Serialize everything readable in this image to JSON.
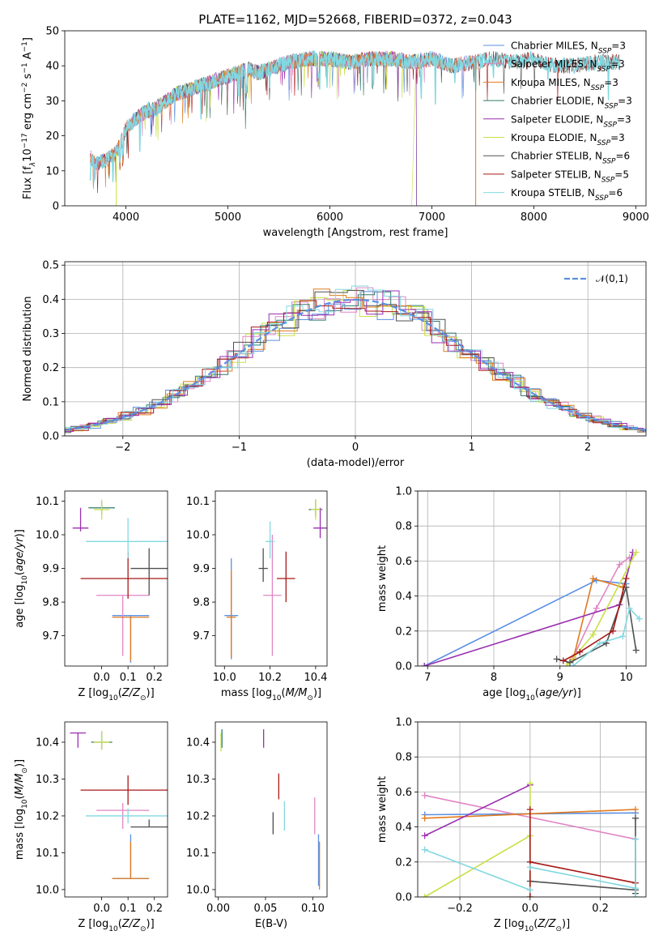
{
  "title": "PLATE=1162, MJD=52668, FIBERID=0372, z=0.043",
  "colors": {
    "chabrier_miles": "#5b8fe0",
    "salpeter_miles": "#e086c4",
    "kroupa_miles": "#e07a1f",
    "chabrier_elodie": "#2d7a6e",
    "salpeter_elodie": "#9a2fb0",
    "kroupa_elodie": "#c9e045",
    "chabrier_stelib": "#505050",
    "salpeter_stelib": "#a81818",
    "kroupa_stelib": "#82d8e0",
    "normal": "#5b8fe0"
  },
  "chart_data": [
    {
      "id": "spectrum",
      "type": "line",
      "xlabel": "wavelength [Angstrom, rest frame]",
      "ylabel": "Flux [f_λ10^{-17} erg cm^{-2} s^{-1} A^{-1}]",
      "xlim": [
        3400,
        9100
      ],
      "ylim": [
        0,
        50
      ],
      "xticks": [
        4000,
        5000,
        6000,
        7000,
        8000,
        9000
      ],
      "yticks": [
        0,
        10,
        20,
        30,
        40,
        50
      ],
      "legend_position": "upper-right",
      "series": [
        {
          "name": "Chabrier MILES, N_SSP=3",
          "key": "chabrier_miles"
        },
        {
          "name": "Salpeter MILES, N_SSP=3",
          "key": "salpeter_miles"
        },
        {
          "name": "Kroupa MILES, N_SSP=3",
          "key": "kroupa_miles"
        },
        {
          "name": "Chabrier ELODIE, N_SSP=3",
          "key": "chabrier_elodie"
        },
        {
          "name": "Salpeter ELODIE, N_SSP=3",
          "key": "salpeter_elodie"
        },
        {
          "name": "Kroupa ELODIE, N_SSP=3",
          "key": "kroupa_elodie"
        },
        {
          "name": "Chabrier STELIB, N_SSP=6",
          "key": "chabrier_stelib"
        },
        {
          "name": "Salpeter STELIB, N_SSP=5",
          "key": "salpeter_stelib"
        },
        {
          "name": "Kroupa STELIB, N_SSP=6",
          "key": "kroupa_stelib"
        }
      ],
      "spectrum_profile": {
        "x": [
          3650,
          3700,
          3800,
          3900,
          3950,
          4000,
          4100,
          4200,
          4300,
          4400,
          4500,
          4600,
          4700,
          4800,
          4900,
          5000,
          5100,
          5200,
          5300,
          5400,
          5500,
          5600,
          5800,
          6000,
          6200,
          6400,
          6600,
          6800,
          7000,
          7200,
          7400,
          7600,
          7800,
          8000,
          8200,
          8400,
          8600,
          8800
        ],
        "y": [
          14,
          12,
          13,
          15,
          18,
          22,
          25,
          27,
          28,
          30,
          32,
          33,
          34,
          35,
          36,
          37,
          38,
          39,
          38,
          39,
          40,
          41,
          42,
          42,
          41,
          42,
          42,
          41,
          42,
          40,
          41,
          42,
          41,
          42,
          40,
          40,
          41,
          41
        ]
      }
    },
    {
      "id": "residuals",
      "type": "area",
      "xlabel": "(data-model)/error",
      "ylabel": "Normed distribution",
      "xlim": [
        -2.5,
        2.5
      ],
      "ylim": [
        0,
        0.51
      ],
      "xticks": [
        -2,
        -1,
        0,
        1,
        2
      ],
      "yticks": [
        0.0,
        0.1,
        0.2,
        0.3,
        0.4,
        0.5
      ],
      "grid": true,
      "legend_position": "upper-right",
      "series": [
        {
          "name": "𝒩(0,1)",
          "key": "normal",
          "style": "dashed"
        }
      ]
    },
    {
      "id": "age_vs_Z",
      "type": "scatter",
      "xlabel": "Z [log10(Z/Z⊙)]",
      "ylabel": "age  [log10(age/yr)]",
      "xlim": [
        -0.14,
        0.25
      ],
      "ylim": [
        9.61,
        10.13
      ],
      "xticks": [
        0.0,
        0.1,
        0.2
      ],
      "yticks": [
        9.7,
        9.8,
        9.9,
        10.0,
        10.1
      ],
      "points": [
        {
          "key": "chabrier_miles",
          "x": 0.11,
          "y": 9.76,
          "xerr": 0.07,
          "yerr_lo": 0.14,
          "yerr_hi": 0.0
        },
        {
          "key": "salpeter_miles",
          "x": 0.08,
          "y": 9.82,
          "xerr": 0.1,
          "yerr_lo": 0.18,
          "yerr_hi": 0.0
        },
        {
          "key": "kroupa_miles",
          "x": 0.11,
          "y": 9.755,
          "xerr": 0.07,
          "yerr_lo": 0.13,
          "yerr_hi": 0.0
        },
        {
          "key": "chabrier_elodie",
          "x": 0.0,
          "y": 10.08,
          "xerr": 0.05,
          "yerr_lo": 0.02,
          "yerr_hi": 0.02
        },
        {
          "key": "salpeter_elodie",
          "x": -0.08,
          "y": 10.02,
          "xerr": 0.03,
          "yerr_lo": 0.01,
          "yerr_hi": 0.06
        },
        {
          "key": "kroupa_elodie",
          "x": 0.0,
          "y": 10.075,
          "xerr": 0.03,
          "yerr_lo": 0.03,
          "yerr_hi": 0.03
        },
        {
          "key": "chabrier_stelib",
          "x": 0.18,
          "y": 9.9,
          "xerr": 0.07,
          "yerr_lo": 0.08,
          "yerr_hi": 0.06
        },
        {
          "key": "salpeter_stelib",
          "x": 0.1,
          "y": 9.87,
          "xerr": 0.18,
          "yerr_lo": 0.06,
          "yerr_hi": 0.08
        },
        {
          "key": "kroupa_stelib",
          "x": 0.1,
          "y": 9.98,
          "xerr": 0.16,
          "yerr_lo": 0.05,
          "yerr_hi": 0.07
        }
      ]
    },
    {
      "id": "age_vs_mass",
      "type": "scatter",
      "xlabel": "mass [log10(M/M⊙)]",
      "ylabel": "",
      "xlim": [
        9.96,
        10.45
      ],
      "ylim": [
        9.61,
        10.13
      ],
      "xticks": [
        10.0,
        10.2,
        10.4
      ],
      "yticks": [
        9.7,
        9.8,
        9.9,
        10.0,
        10.1
      ],
      "points": [
        {
          "key": "chabrier_miles",
          "x": 10.03,
          "y": 9.76,
          "xerr": 0.03,
          "yerr_lo": 0.13,
          "yerr_hi": 0.17
        },
        {
          "key": "salpeter_miles",
          "x": 10.21,
          "y": 9.82,
          "xerr": 0.04,
          "yerr_lo": 0.18,
          "yerr_hi": 0.18
        },
        {
          "key": "kroupa_miles",
          "x": 10.03,
          "y": 9.755,
          "xerr": 0.02,
          "yerr_lo": 0.12,
          "yerr_hi": 0.14
        },
        {
          "key": "chabrier_elodie",
          "x": 10.4,
          "y": 10.075,
          "xerr": 0.03,
          "yerr_lo": 0.02,
          "yerr_hi": 0.03
        },
        {
          "key": "salpeter_elodie",
          "x": 10.42,
          "y": 10.02,
          "xerr": 0.03,
          "yerr_lo": 0.03,
          "yerr_hi": 0.06
        },
        {
          "key": "kroupa_elodie",
          "x": 10.4,
          "y": 10.075,
          "xerr": 0.02,
          "yerr_lo": 0.03,
          "yerr_hi": 0.03
        },
        {
          "key": "chabrier_stelib",
          "x": 10.17,
          "y": 9.9,
          "xerr": 0.02,
          "yerr_lo": 0.04,
          "yerr_hi": 0.06
        },
        {
          "key": "salpeter_stelib",
          "x": 10.27,
          "y": 9.87,
          "xerr": 0.04,
          "yerr_lo": 0.07,
          "yerr_hi": 0.08
        },
        {
          "key": "kroupa_stelib",
          "x": 10.2,
          "y": 9.98,
          "xerr": 0.02,
          "yerr_lo": 0.05,
          "yerr_hi": 0.06
        }
      ]
    },
    {
      "id": "massweight_vs_age",
      "type": "line",
      "xlabel": "age  [log10(age/yr)]",
      "ylabel": "mass weight",
      "xlim": [
        6.85,
        10.3
      ],
      "ylim": [
        0,
        1.0
      ],
      "xticks": [
        7,
        8,
        9,
        10
      ],
      "yticks": [
        0.0,
        0.2,
        0.4,
        0.6,
        0.8,
        1.0
      ],
      "grid": true,
      "series": [
        {
          "key": "chabrier_miles",
          "x": [
            6.95,
            9.55,
            10.0
          ],
          "y": [
            0.0,
            0.49,
            0.47
          ]
        },
        {
          "key": "salpeter_miles",
          "x": [
            9.2,
            9.55,
            9.9,
            10.05
          ],
          "y": [
            0.05,
            0.33,
            0.58,
            0.62
          ]
        },
        {
          "key": "kroupa_miles",
          "x": [
            9.2,
            9.5,
            9.95
          ],
          "y": [
            0.04,
            0.5,
            0.45
          ]
        },
        {
          "key": "salpeter_elodie",
          "x": [
            6.95,
            9.9,
            10.1
          ],
          "y": [
            0.0,
            0.35,
            0.65
          ]
        },
        {
          "key": "kroupa_elodie",
          "x": [
            9.1,
            9.5,
            10.15
          ],
          "y": [
            0.0,
            0.18,
            0.65
          ]
        },
        {
          "key": "chabrier_stelib",
          "x": [
            8.95,
            9.15,
            9.7,
            10.0,
            10.15
          ],
          "y": [
            0.04,
            0.02,
            0.13,
            0.45,
            0.09
          ]
        },
        {
          "key": "salpeter_stelib",
          "x": [
            9.05,
            9.3,
            9.8,
            10.0
          ],
          "y": [
            0.03,
            0.08,
            0.2,
            0.5
          ]
        },
        {
          "key": "kroupa_stelib",
          "x": [
            9.2,
            9.6,
            9.95,
            10.05,
            10.2
          ],
          "y": [
            0.0,
            0.13,
            0.17,
            0.33,
            0.27
          ]
        }
      ]
    },
    {
      "id": "mass_vs_Z",
      "type": "scatter",
      "xlabel": "Z [log10(Z/Z⊙)]",
      "ylabel": "mass [log10(M/M⊙)]",
      "xlim": [
        -0.14,
        0.25
      ],
      "ylim": [
        9.98,
        10.455
      ],
      "xticks": [
        0.0,
        0.1,
        0.2
      ],
      "yticks": [
        10.0,
        10.1,
        10.2,
        10.3,
        10.4
      ],
      "points": [
        {
          "key": "chabrier_miles",
          "x": 0.11,
          "y": 10.03,
          "xerr": 0.07,
          "yerr_lo": 0.0,
          "yerr_hi": 0.12
        },
        {
          "key": "salpeter_miles",
          "x": 0.08,
          "y": 10.215,
          "xerr": 0.1,
          "yerr_lo": 0.05,
          "yerr_hi": 0.02
        },
        {
          "key": "kroupa_miles",
          "x": 0.11,
          "y": 10.03,
          "xerr": 0.07,
          "yerr_lo": 0.0,
          "yerr_hi": 0.1
        },
        {
          "key": "chabrier_elodie",
          "x": 0.0,
          "y": 10.4,
          "xerr": 0.04,
          "yerr_lo": 0.02,
          "yerr_hi": 0.03
        },
        {
          "key": "salpeter_elodie",
          "x": -0.09,
          "y": 10.425,
          "xerr": 0.03,
          "yerr_lo": 0.04,
          "yerr_hi": 0.0
        },
        {
          "key": "kroupa_elodie",
          "x": 0.0,
          "y": 10.4,
          "xerr": 0.03,
          "yerr_lo": 0.02,
          "yerr_hi": 0.03
        },
        {
          "key": "chabrier_stelib",
          "x": 0.18,
          "y": 10.17,
          "xerr": 0.07,
          "yerr_lo": 0.0,
          "yerr_hi": 0.02
        },
        {
          "key": "salpeter_stelib",
          "x": 0.1,
          "y": 10.27,
          "xerr": 0.18,
          "yerr_lo": 0.04,
          "yerr_hi": 0.04
        },
        {
          "key": "kroupa_stelib",
          "x": 0.1,
          "y": 10.2,
          "xerr": 0.16,
          "yerr_lo": 0.02,
          "yerr_hi": 0.02
        }
      ]
    },
    {
      "id": "mass_vs_ebv",
      "type": "scatter",
      "xlabel": "E(B-V)",
      "ylabel": "",
      "xlim": [
        -0.003,
        0.115
      ],
      "ylim": [
        9.98,
        10.455
      ],
      "xticks": [
        0.0,
        0.05,
        0.1
      ],
      "xticklabels": [
        "0.00",
        "0.05",
        "0.10"
      ],
      "yticks": [
        10.0,
        10.1,
        10.2,
        10.3,
        10.4
      ],
      "points": [
        {
          "key": "chabrier_miles",
          "x": 0.106,
          "y": 10.08,
          "yerr": 0.07
        },
        {
          "key": "salpeter_miles",
          "x": 0.102,
          "y": 10.2,
          "yerr": 0.05
        },
        {
          "key": "kroupa_miles",
          "x": 0.107,
          "y": 10.065,
          "yerr": 0.065
        },
        {
          "key": "chabrier_elodie",
          "x": 0.004,
          "y": 10.41,
          "yerr": 0.025
        },
        {
          "key": "salpeter_elodie",
          "x": 0.048,
          "y": 10.41,
          "yerr": 0.025
        },
        {
          "key": "kroupa_elodie",
          "x": 0.003,
          "y": 10.4,
          "yerr": 0.025
        },
        {
          "key": "chabrier_stelib",
          "x": 0.058,
          "y": 10.18,
          "yerr": 0.03
        },
        {
          "key": "salpeter_stelib",
          "x": 0.064,
          "y": 10.28,
          "yerr": 0.035
        },
        {
          "key": "kroupa_stelib",
          "x": 0.07,
          "y": 10.2,
          "yerr": 0.04
        }
      ]
    },
    {
      "id": "massweight_vs_Z",
      "type": "line",
      "xlabel": "Z [log10(Z/Z⊙)]",
      "ylabel": "mass weight",
      "xlim": [
        -0.32,
        0.33
      ],
      "ylim": [
        0,
        1.0
      ],
      "xticks": [
        -0.2,
        0.0,
        0.2
      ],
      "xticklabels": [
        "−0.2",
        "0.0",
        "0.2"
      ],
      "yticks": [
        0.0,
        0.2,
        0.4,
        0.6,
        0.8,
        1.0
      ],
      "grid": true,
      "series": [
        {
          "key": "chabrier_miles",
          "x": [
            -0.3,
            0.3
          ],
          "y": [
            0.47,
            0.48
          ]
        },
        {
          "key": "salpeter_miles",
          "x": [
            -0.3,
            0.3
          ],
          "y": [
            0.58,
            0.33
          ]
        },
        {
          "key": "kroupa_miles",
          "x": [
            -0.3,
            0.3
          ],
          "y": [
            0.45,
            0.5
          ]
        },
        {
          "key": "salpeter_elodie",
          "x": [
            -0.3,
            0.0
          ],
          "y": [
            0.35,
            0.64
          ]
        },
        {
          "key": "kroupa_elodie",
          "x": [
            -0.3,
            0.0
          ],
          "y": [
            0.0,
            0.35
          ]
        },
        {
          "key": "kroupa_elodie",
          "x": [
            0.0,
            0.0
          ],
          "y": [
            0.0,
            0.65
          ]
        },
        {
          "key": "chabrier_stelib",
          "x": [
            0.0,
            0.3
          ],
          "y": [
            0.09,
            0.04
          ]
        },
        {
          "key": "chabrier_stelib",
          "x": [
            0.3,
            0.3
          ],
          "y": [
            0.02,
            0.45
          ]
        },
        {
          "key": "salpeter_stelib",
          "x": [
            0.0,
            0.3
          ],
          "y": [
            0.2,
            0.08
          ]
        },
        {
          "key": "salpeter_stelib",
          "x": [
            0.0,
            0.0
          ],
          "y": [
            0.0,
            0.5
          ]
        },
        {
          "key": "kroupa_stelib",
          "x": [
            -0.3,
            0.0
          ],
          "y": [
            0.27,
            0.04
          ]
        },
        {
          "key": "kroupa_stelib",
          "x": [
            0.0,
            0.3
          ],
          "y": [
            0.17,
            0.05
          ]
        },
        {
          "key": "kroupa_stelib",
          "x": [
            0.3,
            0.3
          ],
          "y": [
            0.0,
            0.33
          ]
        }
      ]
    }
  ]
}
